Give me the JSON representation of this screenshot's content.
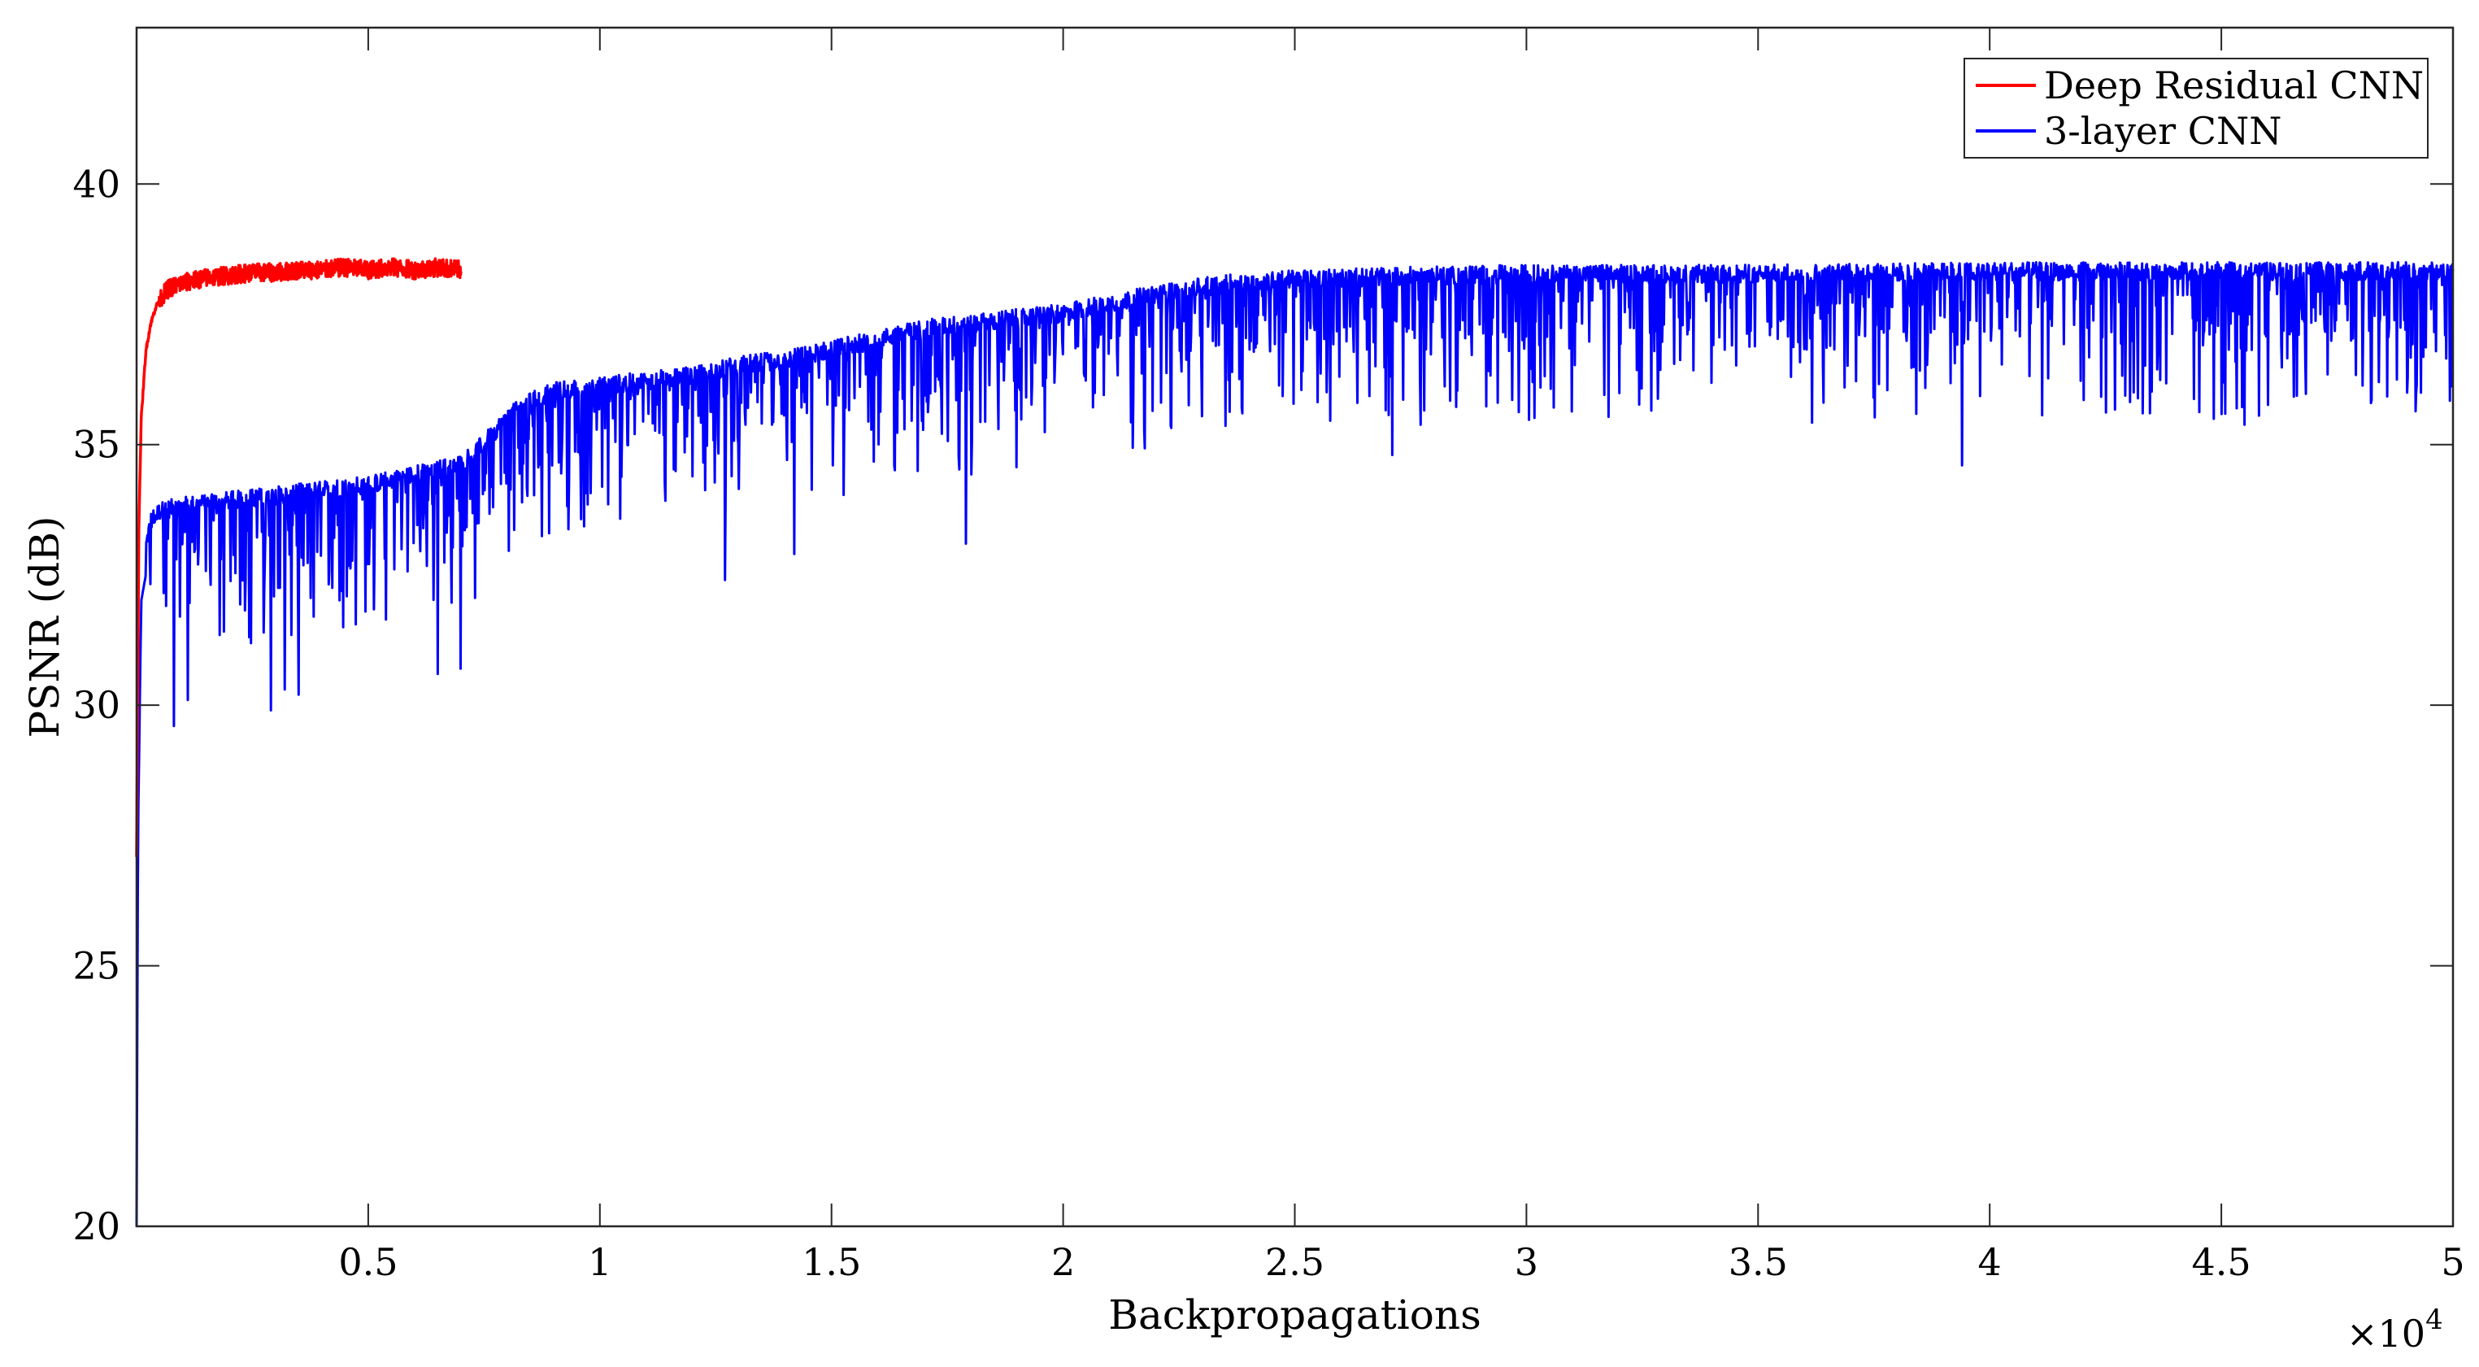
{
  "chart_data": {
    "type": "line",
    "xlabel": "Backpropagations",
    "ylabel": "PSNR (dB)",
    "x_multiplier_label": "×10",
    "x_multiplier_exponent": "4",
    "xlim": [
      0,
      50000
    ],
    "ylim": [
      20,
      43
    ],
    "xticks": [
      5000,
      10000,
      15000,
      20000,
      25000,
      30000,
      35000,
      40000,
      45000,
      50000
    ],
    "xtick_labels": [
      "0.5",
      "1",
      "1.5",
      "2",
      "2.5",
      "3",
      "3.5",
      "4",
      "4.5",
      "5"
    ],
    "yticks": [
      20,
      25,
      30,
      35,
      40
    ],
    "ytick_labels": [
      "20",
      "25",
      "30",
      "35",
      "40"
    ],
    "grid": false,
    "legend_position": "top-right",
    "series": [
      {
        "name": "Deep Residual CNN",
        "color": "#ff0000",
        "x": [
          0,
          50,
          100,
          200,
          300,
          400,
          500,
          700,
          1000,
          1500,
          2000,
          2500,
          3000,
          3500,
          4000,
          4500,
          5000,
          5500,
          6000,
          6500,
          7000
        ],
        "y": [
          27.1,
          33.5,
          35.5,
          36.8,
          37.3,
          37.6,
          37.8,
          38.0,
          38.1,
          38.2,
          38.25,
          38.3,
          38.3,
          38.35,
          38.35,
          38.4,
          38.35,
          38.4,
          38.35,
          38.4,
          38.35
        ]
      },
      {
        "name": "3-layer CNN",
        "color": "#0000ff",
        "x": [
          0,
          30,
          100,
          300,
          500,
          1000,
          2000,
          3000,
          4000,
          5000,
          6000,
          7000,
          7500,
          8000,
          8500,
          9000,
          10000,
          11000,
          12000,
          13000,
          14000,
          15000,
          16000,
          17000,
          18000,
          19000,
          20000,
          21000,
          22000,
          23000,
          24000,
          25000,
          27000,
          30000,
          35000,
          40000,
          45000,
          50000
        ],
        "y": [
          20.0,
          27.5,
          32.0,
          33.0,
          33.2,
          33.3,
          33.4,
          33.5,
          33.6,
          33.7,
          33.9,
          34.1,
          34.5,
          35.0,
          35.3,
          35.5,
          35.6,
          35.7,
          35.8,
          36.0,
          36.1,
          36.3,
          36.5,
          36.7,
          36.8,
          36.9,
          37.0,
          37.2,
          37.35,
          37.5,
          37.6,
          37.65,
          37.7,
          37.75,
          37.75,
          37.8,
          37.8,
          37.8
        ],
        "dips": [
          [
            800,
            29.6
          ],
          [
            1100,
            30.1
          ],
          [
            2900,
            29.9
          ],
          [
            3200,
            30.3
          ],
          [
            3500,
            30.2
          ],
          [
            6500,
            30.6
          ],
          [
            7000,
            30.7
          ],
          [
            12700,
            32.4
          ],
          [
            14200,
            32.9
          ],
          [
            17900,
            33.1
          ],
          [
            27100,
            34.8
          ],
          [
            39400,
            34.6
          ],
          [
            43300,
            35.6
          ],
          [
            48400,
            36.2
          ]
        ]
      }
    ]
  }
}
